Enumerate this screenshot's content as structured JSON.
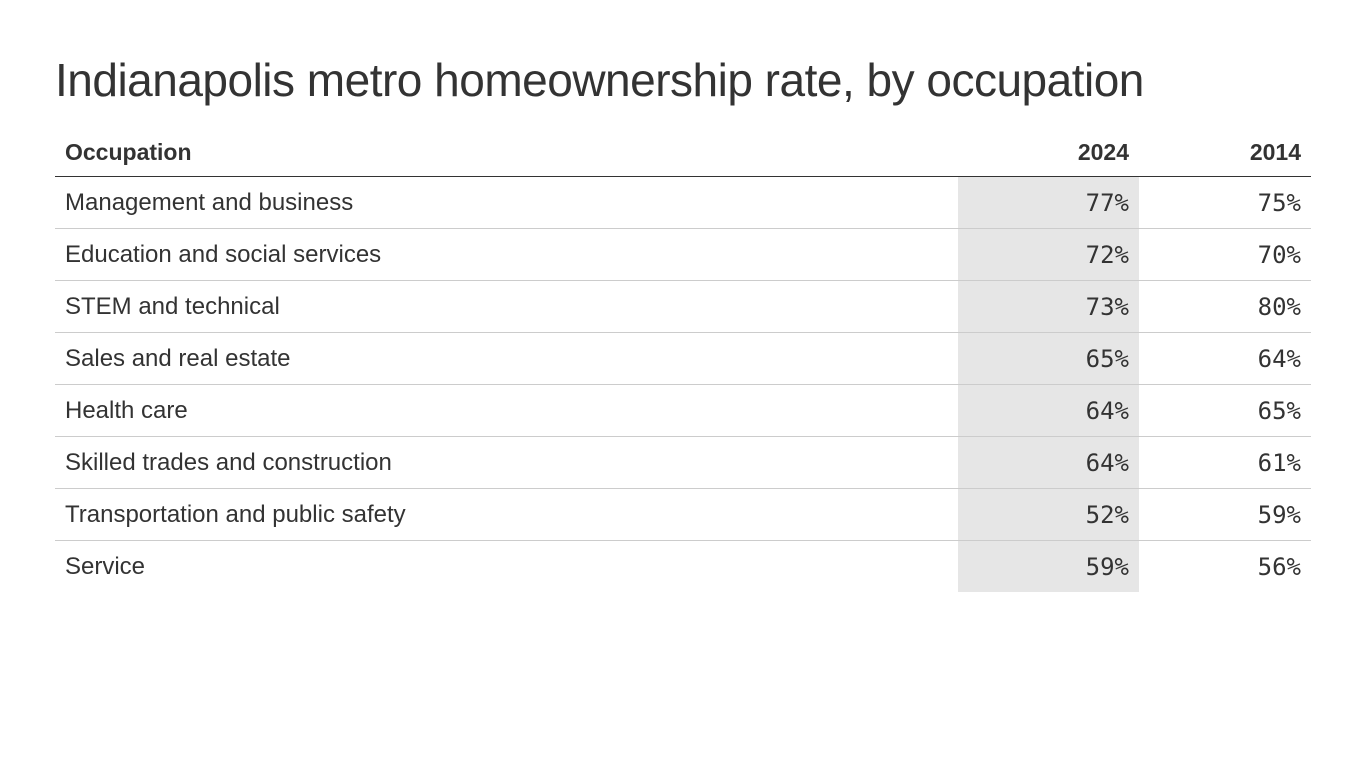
{
  "title": "Indianapolis metro homeownership rate, by occupation",
  "table": {
    "header": [
      "Occupation",
      "2024",
      "2014"
    ],
    "rows": [
      [
        "Management and business",
        "77%",
        "75%"
      ],
      [
        "Education and social services",
        "72%",
        "70%"
      ],
      [
        "STEM and technical",
        "73%",
        "80%"
      ],
      [
        "Sales and real estate",
        "65%",
        "64%"
      ],
      [
        "Health care",
        "64%",
        "65%"
      ],
      [
        "Skilled trades and construction",
        "64%",
        "61%"
      ],
      [
        "Transportation and public safety",
        "52%",
        "59%"
      ],
      [
        "Service",
        "59%",
        "56%"
      ]
    ]
  }
}
